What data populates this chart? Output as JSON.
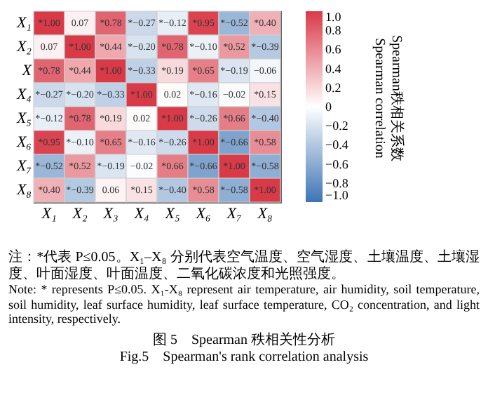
{
  "chart_data": {
    "type": "heatmap",
    "categories": [
      "X₁",
      "X₂",
      "X₃",
      "X₄",
      "X₅",
      "X₆",
      "X₇",
      "X₈"
    ],
    "y_categories": [
      "X₁",
      "X₂",
      "X",
      "X₄",
      "X₅",
      "X₆",
      "X₇",
      "X₈"
    ],
    "cells": [
      [
        1.0,
        0.07,
        0.78,
        -0.27,
        -0.12,
        0.95,
        -0.52,
        0.4
      ],
      [
        0.07,
        1.0,
        0.44,
        -0.2,
        0.78,
        -0.1,
        0.52,
        -0.39
      ],
      [
        0.78,
        0.44,
        1.0,
        -0.33,
        0.19,
        0.65,
        -0.19,
        -0.06
      ],
      [
        -0.27,
        -0.2,
        -0.33,
        1.0,
        0.02,
        -0.16,
        -0.02,
        0.15
      ],
      [
        -0.12,
        0.78,
        0.19,
        0.02,
        1.0,
        -0.26,
        0.66,
        -0.4
      ],
      [
        0.95,
        -0.1,
        0.65,
        -0.16,
        -0.26,
        1.0,
        -0.66,
        0.58
      ],
      [
        -0.52,
        0.52,
        -0.19,
        -0.02,
        0.66,
        -0.66,
        1.0,
        -0.58
      ],
      [
        0.4,
        -0.39,
        0.06,
        0.15,
        -0.4,
        0.58,
        -0.58,
        1.0
      ]
    ],
    "cell_labels": [
      [
        "*1.00",
        "0.07",
        "*0.78",
        "*−0.27",
        "*−0.12",
        "*0.95",
        "*−0.52",
        "*0.40"
      ],
      [
        "0.07",
        "*1.00",
        "*0.44",
        "*−0.20",
        "*0.78",
        "*−0.10",
        "*0.52",
        "*−0.39"
      ],
      [
        "*0.78",
        "*0.44",
        "*1.00",
        "*−0.33",
        "*0.19",
        "*0.65",
        "*−0.19",
        "−0.06"
      ],
      [
        "*−0.27",
        "*−0.20",
        "*−0.33",
        "*1.00",
        "0.02",
        "*−0.16",
        "−0.02",
        "*0.15"
      ],
      [
        "*−0.12",
        "*0.78",
        "*0.19",
        "0.02",
        "*1.00",
        "*−0.26",
        "*0.66",
        "*−0.40"
      ],
      [
        "*0.95",
        "*−0.10",
        "*0.65",
        "*−0.16",
        "*−0.26",
        "*1.00",
        "*−0.66",
        "*0.58"
      ],
      [
        "*−0.52",
        "*0.52",
        "*−0.19",
        "−0.02",
        "*0.66",
        "*−0.66",
        "*1.00",
        "*−0.58"
      ],
      [
        "*0.40",
        "*−0.39",
        "0.06",
        "*0.15",
        "*−0.40",
        "*0.58",
        "*−0.58",
        "*1.00"
      ]
    ],
    "clim": [
      -1,
      1
    ],
    "cticks": [
      {
        "value": 1,
        "label": "1.0"
      },
      {
        "value": 0.8,
        "label": "0.8"
      },
      {
        "value": 0.6,
        "label": "0.6"
      },
      {
        "value": 0.4,
        "label": "0.4"
      },
      {
        "value": 0.2,
        "label": "0.2"
      },
      0,
      {
        "value": -0.2,
        "label": "−0.2"
      },
      {
        "value": -0.4,
        "label": "−0.4"
      },
      {
        "value": -0.6,
        "label": "−0.6"
      },
      {
        "value": -0.8,
        "label": "−0.8"
      },
      {
        "value": -1,
        "label": "−1.0"
      }
    ],
    "clabel": "Spearman秩相关系数\nSpearman correlation",
    "annotations": [
      "注：*代表 P≤0.05。X₁–X₈ 分别代表空气温度、空气湿度、土壤温度、土壤湿度、叶面湿度、叶面温度、二氧化碳浓度和光照强度。",
      "Note: * represents P≤0.05. X₁-X₈ represent air temperature, air humidity, soil temperature, soil humidity, leaf surface humidity, leaf surface temperature, CO₂ concentration, and light intensity, respectively.",
      "图 5　Spearman 秩相关性分析",
      "Fig.5　Spearman's rank correlation analysis"
    ]
  }
}
